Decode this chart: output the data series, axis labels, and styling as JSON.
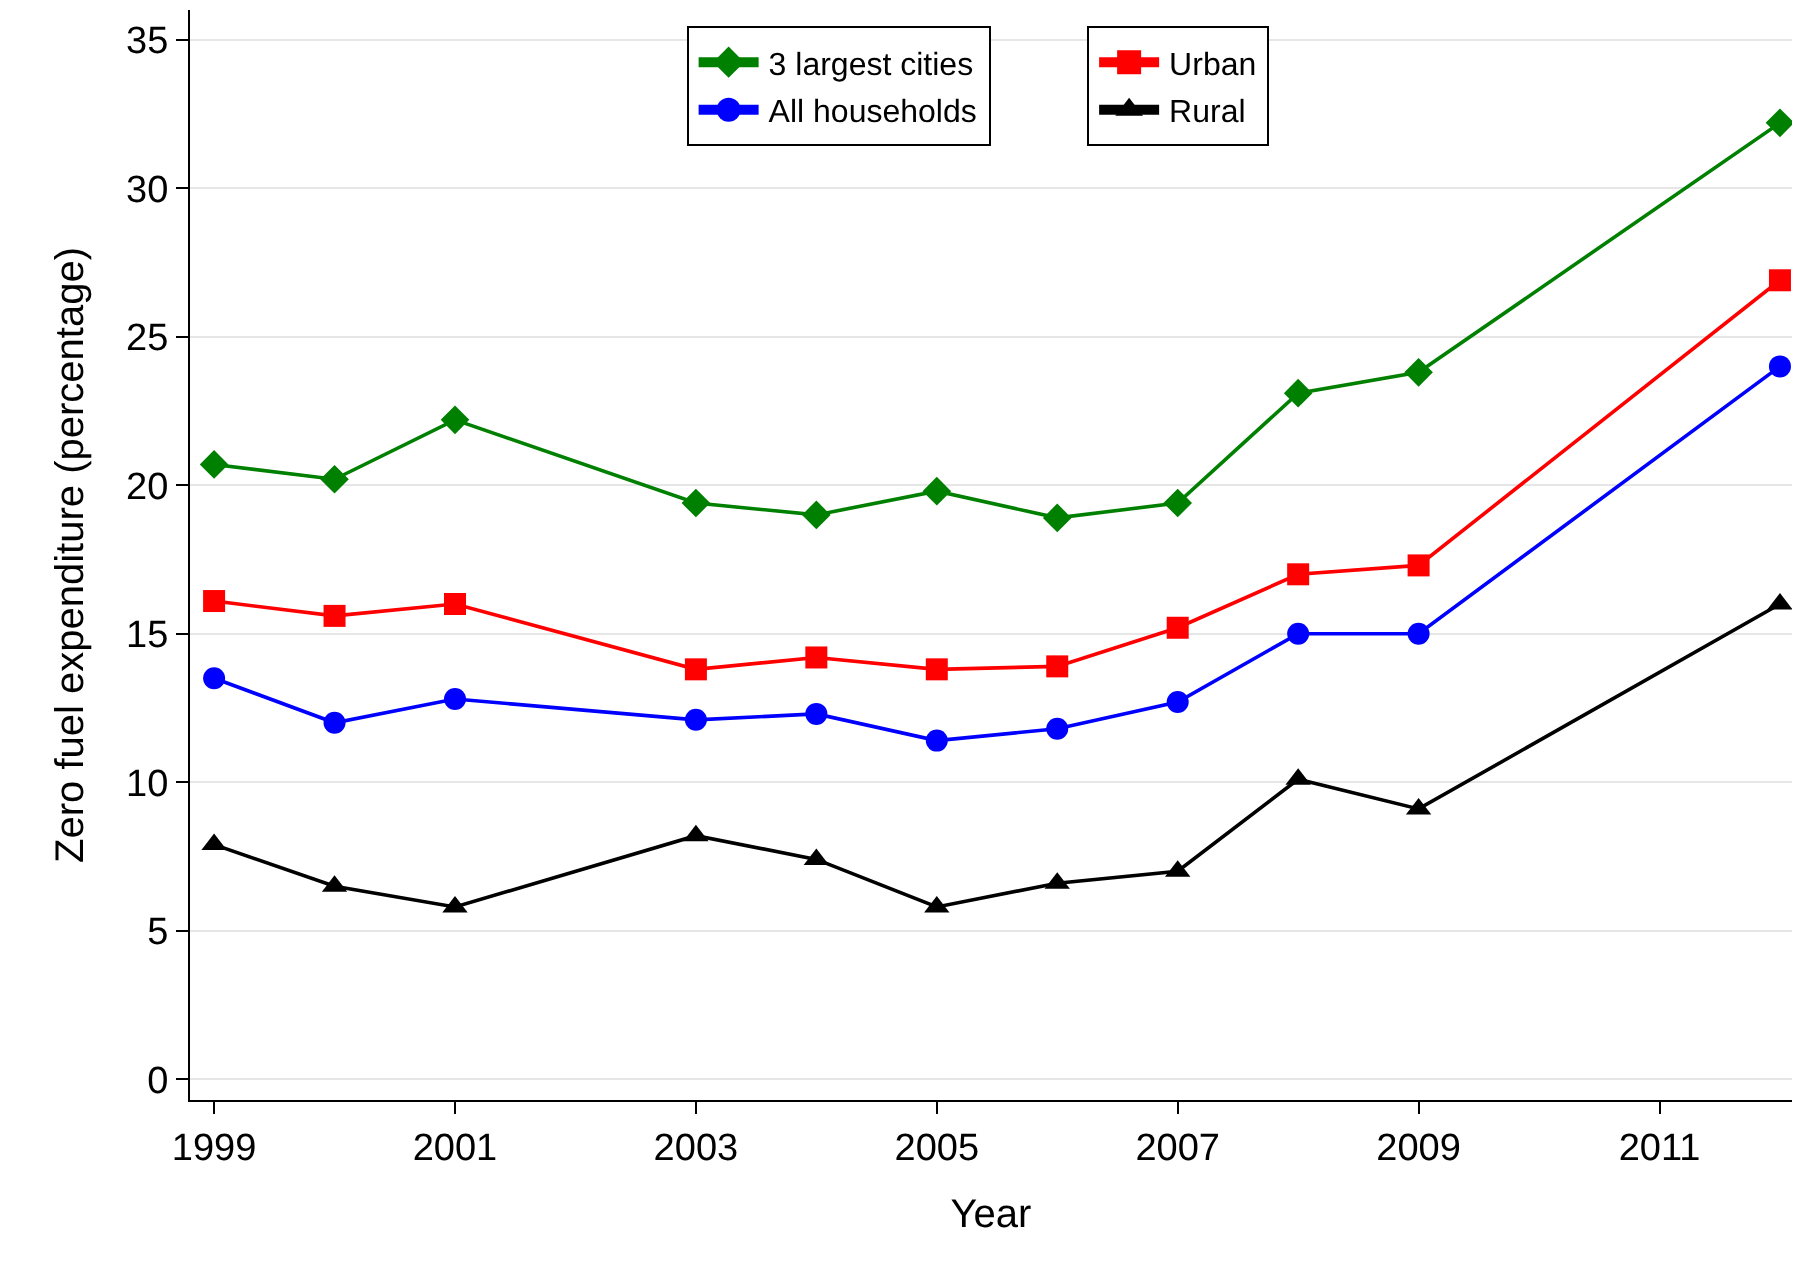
{
  "chart_data": {
    "type": "line",
    "xlabel": "Year",
    "ylabel": "Zero fuel expenditure (percentage)",
    "x": [
      1999,
      2000,
      2001,
      2003,
      2004,
      2005,
      2006,
      2007,
      2008,
      2009,
      2012
    ],
    "series": [
      {
        "name": "3 largest cities",
        "color": "#008000",
        "marker": "diamond",
        "values": [
          20.7,
          20.2,
          22.2,
          19.4,
          19.0,
          19.8,
          18.9,
          19.4,
          23.1,
          23.8,
          32.2
        ]
      },
      {
        "name": "Urban",
        "color": "#ff0000",
        "marker": "square",
        "values": [
          16.1,
          15.6,
          16.0,
          13.8,
          14.2,
          13.8,
          13.9,
          15.2,
          17.0,
          17.3,
          26.9
        ]
      },
      {
        "name": "All households",
        "color": "#0000ff",
        "marker": "circle",
        "values": [
          13.5,
          12.0,
          12.8,
          12.1,
          12.3,
          11.4,
          11.8,
          12.7,
          15.0,
          15.0,
          24.0
        ]
      },
      {
        "name": "Rural",
        "color": "#000000",
        "marker": "triangle",
        "values": [
          7.9,
          6.5,
          5.8,
          8.2,
          7.4,
          5.8,
          6.6,
          7.0,
          10.1,
          9.1,
          16.0
        ]
      }
    ],
    "xlim": [
      1998.8,
      2012.1
    ],
    "xticks": [
      1999,
      2001,
      2003,
      2005,
      2007,
      2009,
      2011
    ],
    "ylim": [
      -0.7,
      36
    ],
    "yticks": [
      0,
      5,
      10,
      15,
      20,
      25,
      30,
      35
    ],
    "grid": "y",
    "legend": "top",
    "line_style": "solid"
  }
}
